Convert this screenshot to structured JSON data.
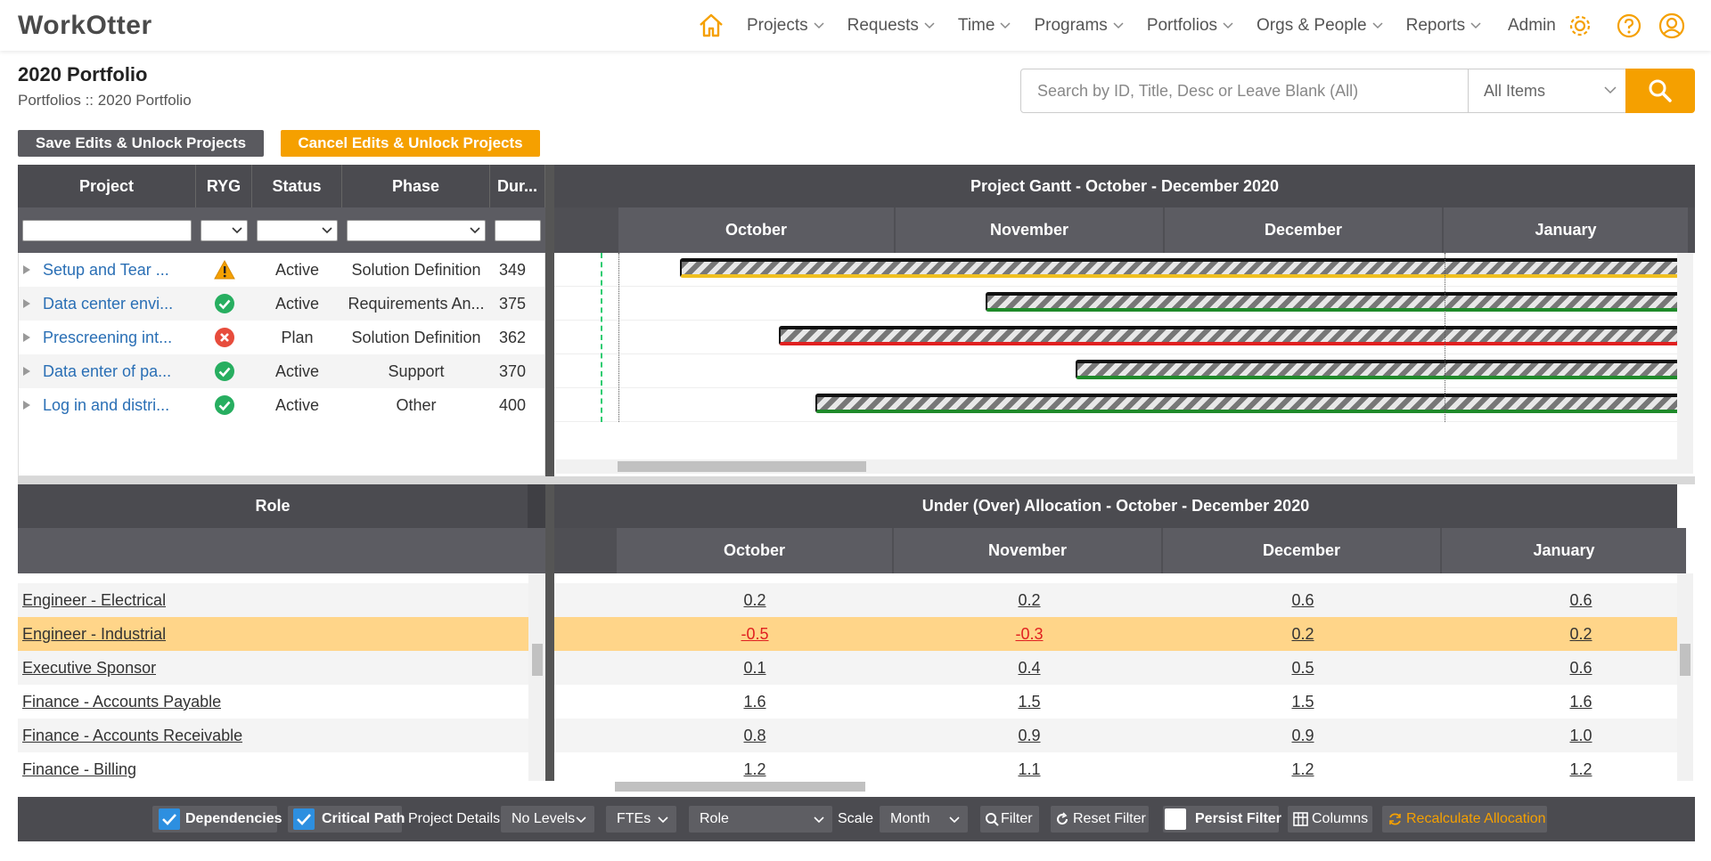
{
  "nav": {
    "logo": "WorkOtter",
    "items": [
      "Projects",
      "Requests",
      "Time",
      "Programs",
      "Portfolios",
      "Orgs & People",
      "Reports"
    ],
    "admin": "Admin"
  },
  "header": {
    "title": "2020 Portfolio",
    "breadcrumb": "Portfolios :: 2020 Portfolio"
  },
  "search": {
    "placeholder": "Search by ID, Title, Desc or Leave Blank (All)",
    "scope": "All Items"
  },
  "buttons": {
    "save": "Save Edits & Unlock Projects",
    "cancel": "Cancel Edits & Unlock Projects"
  },
  "projects": {
    "columns": [
      "Project",
      "RYG",
      "Status",
      "Phase",
      "Dur..."
    ],
    "rows": [
      {
        "name": "Setup and Tear ...",
        "ryg": "yellow",
        "status": "Active",
        "phase": "Solution Definition",
        "duration": 349
      },
      {
        "name": "Data center envi...",
        "ryg": "green",
        "status": "Active",
        "phase": "Requirements An...",
        "duration": 375
      },
      {
        "name": "Prescreening int...",
        "ryg": "red",
        "status": "Plan",
        "phase": "Solution Definition",
        "duration": 362
      },
      {
        "name": "Data enter of pa...",
        "ryg": "green",
        "status": "Active",
        "phase": "Support",
        "duration": 370
      },
      {
        "name": "Log in and distri...",
        "ryg": "green",
        "status": "Active",
        "phase": "Other",
        "duration": 400
      }
    ]
  },
  "gantt": {
    "title": "Project Gantt - October - December 2020",
    "months": [
      "October",
      "November",
      "December",
      "January"
    ]
  },
  "allocation": {
    "role_header": "Role",
    "title": "Under (Over) Allocation - October - December 2020",
    "months": [
      "October",
      "November",
      "December",
      "January"
    ],
    "rows": [
      {
        "role": "Engineer - Electrical",
        "values": [
          "0.2",
          "0.2",
          "0.6",
          "0.6"
        ]
      },
      {
        "role": "Engineer - Industrial",
        "values": [
          "-0.5",
          "-0.3",
          "0.2",
          "0.2"
        ],
        "highlight": true
      },
      {
        "role": "Executive Sponsor",
        "values": [
          "0.1",
          "0.4",
          "0.5",
          "0.6"
        ]
      },
      {
        "role": "Finance - Accounts Payable",
        "values": [
          "1.6",
          "1.5",
          "1.5",
          "1.6"
        ]
      },
      {
        "role": "Finance - Accounts Receivable",
        "values": [
          "0.8",
          "0.9",
          "0.9",
          "1.0"
        ]
      },
      {
        "role": "Finance - Billing",
        "values": [
          "1.2",
          "1.1",
          "1.2",
          "1.2"
        ]
      }
    ]
  },
  "toolbar": {
    "dependencies": "Dependencies",
    "critical_path": "Critical Path",
    "project_details": "Project Details",
    "levels": "No Levels",
    "units": "FTEs",
    "group": "Role",
    "scale_label": "Scale",
    "scale": "Month",
    "filter": "Filter",
    "reset": "Reset Filter",
    "persist": "Persist Filter",
    "columns": "Columns",
    "recalc": "Recalculate Allocation"
  }
}
